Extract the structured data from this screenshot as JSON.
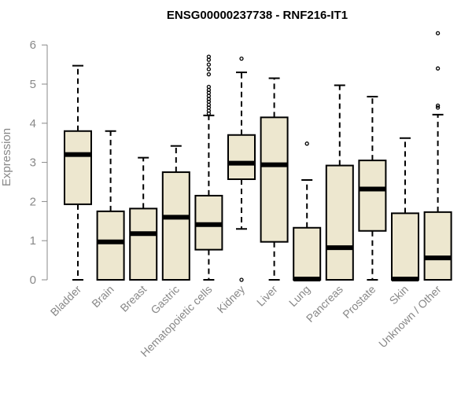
{
  "chart_data": {
    "type": "box",
    "title": "ENSG00000237738 - RNF216-IT1",
    "ylabel": "Expression",
    "xlabel": "",
    "ylim": [
      0,
      6.3
    ],
    "yticks": [
      "0",
      "1",
      "2",
      "3",
      "4",
      "5",
      "6"
    ],
    "box_color": "#ede7cf",
    "categories": [
      "Bladder",
      "Brain",
      "Breast",
      "Gastric",
      "Hematopoietic cells",
      "Kidney",
      "Liver",
      "Lung",
      "Pancreas",
      "Prostate",
      "Skin",
      "Unknown / Other"
    ],
    "boxes": [
      {
        "whisker_low": 0.0,
        "q1": 1.93,
        "median": 3.2,
        "q3": 3.8,
        "whisker_high": 5.47,
        "outliers": []
      },
      {
        "whisker_low": 0.0,
        "q1": 0.0,
        "median": 0.97,
        "q3": 1.75,
        "whisker_high": 3.8,
        "outliers": []
      },
      {
        "whisker_low": 0.0,
        "q1": 0.0,
        "median": 1.18,
        "q3": 1.82,
        "whisker_high": 3.12,
        "outliers": []
      },
      {
        "whisker_low": 0.0,
        "q1": 0.0,
        "median": 1.6,
        "q3": 2.75,
        "whisker_high": 3.42,
        "outliers": []
      },
      {
        "whisker_low": 0.0,
        "q1": 0.77,
        "median": 1.41,
        "q3": 2.15,
        "whisker_high": 4.2,
        "outliers": [
          4.25,
          4.32,
          4.4,
          4.47,
          4.55,
          4.62,
          4.7,
          4.78,
          4.85,
          4.93,
          5.25,
          5.38,
          5.5,
          5.62,
          5.7
        ]
      },
      {
        "whisker_low": 1.3,
        "q1": 2.57,
        "median": 2.98,
        "q3": 3.7,
        "whisker_high": 5.3,
        "outliers": [
          0.0,
          5.65
        ]
      },
      {
        "whisker_low": 0.0,
        "q1": 0.97,
        "median": 2.94,
        "q3": 4.15,
        "whisker_high": 5.15,
        "outliers": []
      },
      {
        "whisker_low": 0.0,
        "q1": 0.0,
        "median": 0.02,
        "q3": 1.33,
        "whisker_high": 2.55,
        "outliers": [
          3.48
        ]
      },
      {
        "whisker_low": 0.0,
        "q1": 0.0,
        "median": 0.82,
        "q3": 2.92,
        "whisker_high": 4.97,
        "outliers": []
      },
      {
        "whisker_low": 0.0,
        "q1": 1.25,
        "median": 2.32,
        "q3": 3.05,
        "whisker_high": 4.68,
        "outliers": []
      },
      {
        "whisker_low": 0.0,
        "q1": 0.0,
        "median": 0.02,
        "q3": 1.7,
        "whisker_high": 3.62,
        "outliers": []
      },
      {
        "whisker_low": 0.0,
        "q1": 0.0,
        "median": 0.56,
        "q3": 1.73,
        "whisker_high": 4.22,
        "outliers": [
          4.4,
          4.45,
          5.4,
          6.3
        ]
      }
    ]
  }
}
